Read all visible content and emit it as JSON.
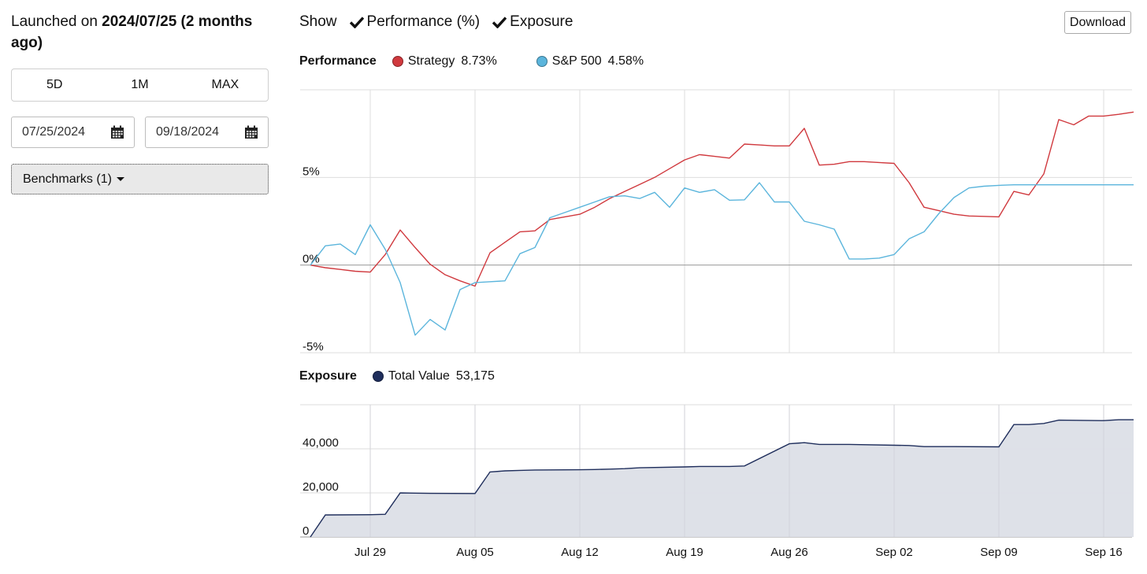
{
  "left_panel": {
    "launch_prefix": "Launched on",
    "launch_date_text": "2024/07/25 (2 months ago)",
    "ranges": [
      "5D",
      "1M",
      "MAX"
    ],
    "start_date": "07/25/2024",
    "end_date": "09/18/2024",
    "benchmarks_label": "Benchmarks (1)"
  },
  "toolbar": {
    "show_label": "Show",
    "options": [
      "Performance (%)",
      "Exposure"
    ],
    "download_label": "Download"
  },
  "colors": {
    "strategy": "#d0393e",
    "sp500": "#5bb5dc",
    "total_value": "#1f2e5c",
    "area_fill": "#dcdfe7",
    "grid": "#dddddd"
  },
  "chart_data": [
    {
      "type": "line",
      "title": "Performance",
      "x_type": "date",
      "xlim": [
        "2024-07-25",
        "2024-09-18"
      ],
      "ylim": [
        -5,
        10
      ],
      "y_ticks": [
        -5,
        0,
        5
      ],
      "y_tick_labels": [
        "-5%",
        "0%",
        "5%"
      ],
      "x_tick_labels": [
        "Jul 29",
        "Aug 05",
        "Aug 12",
        "Aug 19",
        "Aug 26",
        "Sep 02",
        "Sep 09",
        "Sep 16"
      ],
      "x": [
        "2024-07-25",
        "2024-07-26",
        "2024-07-27",
        "2024-07-28",
        "2024-07-29",
        "2024-07-30",
        "2024-07-31",
        "2024-08-01",
        "2024-08-02",
        "2024-08-03",
        "2024-08-04",
        "2024-08-05",
        "2024-08-06",
        "2024-08-07",
        "2024-08-08",
        "2024-08-09",
        "2024-08-10",
        "2024-08-11",
        "2024-08-12",
        "2024-08-13",
        "2024-08-14",
        "2024-08-15",
        "2024-08-16",
        "2024-08-17",
        "2024-08-18",
        "2024-08-19",
        "2024-08-20",
        "2024-08-21",
        "2024-08-22",
        "2024-08-23",
        "2024-08-24",
        "2024-08-25",
        "2024-08-26",
        "2024-08-27",
        "2024-08-28",
        "2024-08-29",
        "2024-08-30",
        "2024-08-31",
        "2024-09-01",
        "2024-09-02",
        "2024-09-03",
        "2024-09-04",
        "2024-09-05",
        "2024-09-06",
        "2024-09-07",
        "2024-09-08",
        "2024-09-09",
        "2024-09-10",
        "2024-09-11",
        "2024-09-12",
        "2024-09-13",
        "2024-09-14",
        "2024-09-15",
        "2024-09-16",
        "2024-09-17",
        "2024-09-18"
      ],
      "series": [
        {
          "name": "Strategy",
          "legend_value": "8.73%",
          "color_key": "strategy",
          "values": [
            0.0,
            -0.15,
            -0.25,
            -0.35,
            -0.4,
            0.6,
            2.0,
            1.0,
            0.05,
            -0.55,
            -0.9,
            -1.2,
            0.7,
            1.3,
            1.9,
            1.95,
            2.6,
            2.75,
            2.9,
            3.3,
            3.8,
            4.2,
            4.6,
            5.0,
            5.5,
            6.0,
            6.3,
            6.2,
            6.1,
            6.9,
            6.85,
            6.8,
            6.8,
            7.8,
            5.7,
            5.75,
            5.9,
            5.9,
            5.85,
            5.8,
            4.7,
            3.3,
            3.1,
            2.9,
            2.8,
            2.78,
            2.75,
            4.2,
            4.0,
            5.2,
            8.3,
            8.0,
            8.5,
            8.5,
            8.6,
            8.73
          ]
        },
        {
          "name": "S&P 500",
          "legend_value": "4.58%",
          "color_key": "sp500",
          "values": [
            0.0,
            1.1,
            1.2,
            0.6,
            2.3,
            0.9,
            -1.0,
            -4.0,
            -3.1,
            -3.7,
            -1.4,
            -1.0,
            -0.95,
            -0.9,
            0.65,
            1.0,
            2.7,
            3.0,
            3.3,
            3.6,
            3.9,
            3.95,
            3.8,
            4.15,
            3.3,
            4.4,
            4.15,
            4.3,
            3.7,
            3.72,
            4.7,
            3.6,
            3.6,
            2.5,
            2.3,
            2.05,
            0.35,
            0.35,
            0.4,
            0.6,
            1.5,
            1.9,
            2.95,
            3.85,
            4.4,
            4.5,
            4.55,
            4.58,
            4.58,
            4.58,
            4.58,
            4.58,
            4.58,
            4.58,
            4.58,
            4.58
          ]
        }
      ]
    },
    {
      "type": "area",
      "title": "Exposure",
      "x_type": "date",
      "xlim": [
        "2024-07-25",
        "2024-09-18"
      ],
      "ylim": [
        0,
        60000
      ],
      "y_ticks": [
        0,
        20000,
        40000
      ],
      "y_tick_labels": [
        "0",
        "20,000",
        "40,000"
      ],
      "x_tick_labels": [
        "Jul 29",
        "Aug 05",
        "Aug 12",
        "Aug 19",
        "Aug 26",
        "Sep 02",
        "Sep 09",
        "Sep 16"
      ],
      "x": [
        "2024-07-25",
        "2024-07-26",
        "2024-07-29",
        "2024-07-30",
        "2024-07-31",
        "2024-08-01",
        "2024-08-02",
        "2024-08-05",
        "2024-08-06",
        "2024-08-07",
        "2024-08-08",
        "2024-08-09",
        "2024-08-12",
        "2024-08-13",
        "2024-08-14",
        "2024-08-15",
        "2024-08-16",
        "2024-08-19",
        "2024-08-20",
        "2024-08-21",
        "2024-08-22",
        "2024-08-23",
        "2024-08-26",
        "2024-08-27",
        "2024-08-28",
        "2024-08-29",
        "2024-08-30",
        "2024-09-03",
        "2024-09-04",
        "2024-09-05",
        "2024-09-06",
        "2024-09-09",
        "2024-09-10",
        "2024-09-11",
        "2024-09-12",
        "2024-09-13",
        "2024-09-16",
        "2024-09-17",
        "2024-09-18"
      ],
      "series": [
        {
          "name": "Total Value",
          "legend_value": "53,175",
          "color_key": "total_value",
          "values": [
            0,
            10000,
            10100,
            10300,
            20000,
            19900,
            19800,
            19700,
            29500,
            30000,
            30200,
            30400,
            30500,
            30600,
            30800,
            31000,
            31400,
            31800,
            32000,
            32000,
            32000,
            32200,
            42300,
            42800,
            42000,
            42000,
            42000,
            41500,
            41000,
            41000,
            41000,
            40900,
            51000,
            51000,
            51500,
            53000,
            52800,
            53175,
            53175
          ]
        }
      ]
    }
  ]
}
